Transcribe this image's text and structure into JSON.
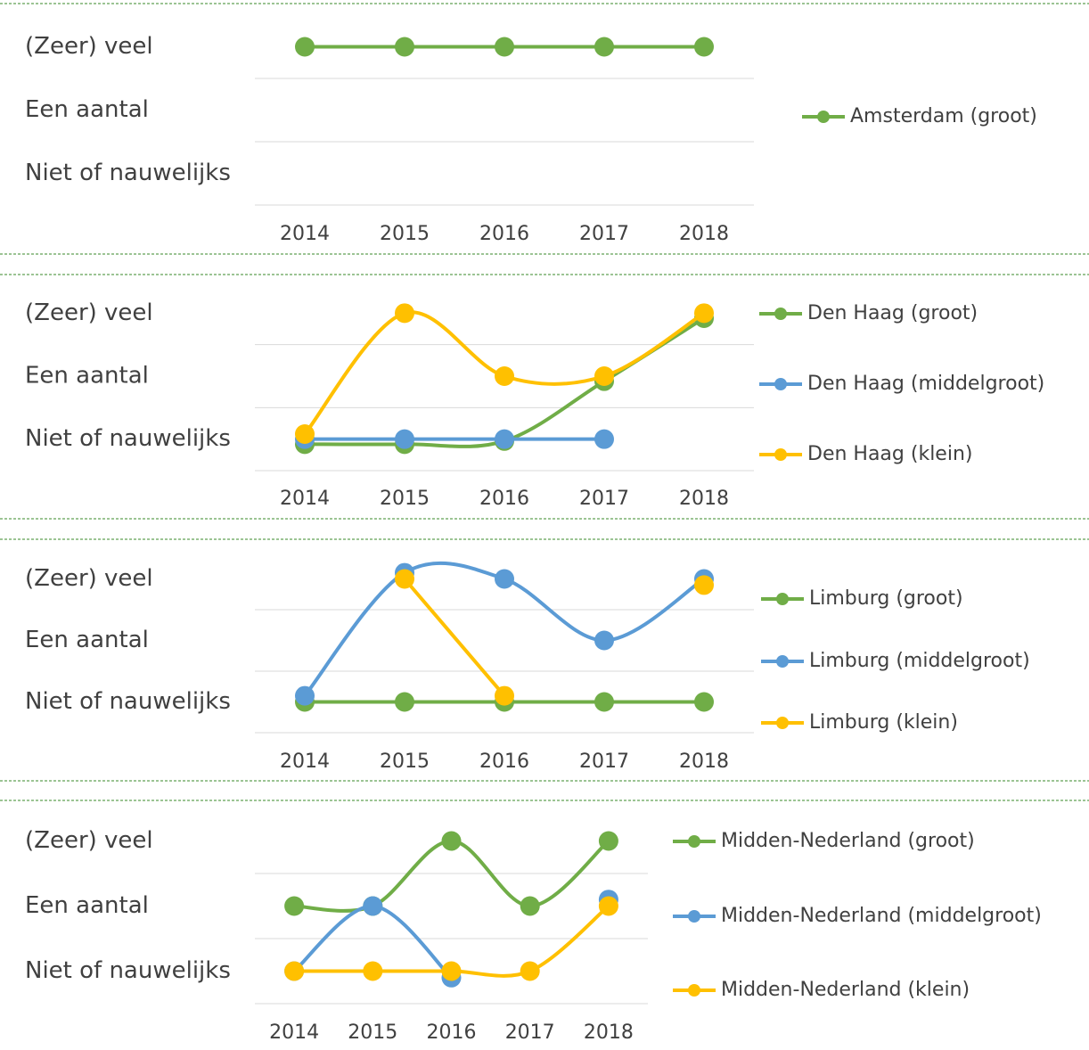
{
  "chart_data": [
    {
      "type": "line",
      "categories": [
        "2014",
        "2015",
        "2016",
        "2017",
        "2018"
      ],
      "series": [
        {
          "name": "Amsterdam (groot)",
          "color": "#70ad47",
          "values": [
            3,
            3,
            3,
            3,
            3
          ]
        }
      ],
      "ylim": [
        0.5,
        3.5
      ],
      "yticks": [
        {
          "value": 1,
          "label": "Niet of nauwelijks"
        },
        {
          "value": 2,
          "label": "Een aantal"
        },
        {
          "value": 3,
          "label": "(Zeer) veel"
        }
      ]
    },
    {
      "type": "line",
      "categories": [
        "2014",
        "2015",
        "2016",
        "2017",
        "2018"
      ],
      "series": [
        {
          "name": "Den Haag (groot)",
          "color": "#70ad47",
          "values": [
            0.92,
            0.92,
            0.97,
            1.92,
            2.92
          ]
        },
        {
          "name": "Den Haag (middelgroot)",
          "color": "#5b9bd5",
          "values": [
            1,
            1,
            1,
            1,
            null
          ]
        },
        {
          "name": "Den Haag (klein)",
          "color": "#ffc000",
          "values": [
            1.08,
            3,
            2,
            2,
            3
          ]
        }
      ],
      "ylim": [
        0.5,
        3.5
      ],
      "yticks": [
        {
          "value": 1,
          "label": "Niet of nauwelijks"
        },
        {
          "value": 2,
          "label": "Een aantal"
        },
        {
          "value": 3,
          "label": "(Zeer) veel"
        }
      ]
    },
    {
      "type": "line",
      "categories": [
        "2014",
        "2015",
        "2016",
        "2017",
        "2018"
      ],
      "series": [
        {
          "name": "Limburg (groot)",
          "color": "#70ad47",
          "values": [
            1,
            1,
            1,
            1,
            1
          ]
        },
        {
          "name": "Limburg (middelgroot)",
          "color": "#5b9bd5",
          "values": [
            1.1,
            3.1,
            3,
            2,
            3
          ]
        },
        {
          "name": "Limburg (klein)",
          "color": "#ffc000",
          "values": [
            null,
            3,
            1.1,
            null,
            2.9
          ]
        }
      ],
      "ylim": [
        0.5,
        3.5
      ],
      "yticks": [
        {
          "value": 1,
          "label": "Niet of nauwelijks"
        },
        {
          "value": 2,
          "label": "Een aantal"
        },
        {
          "value": 3,
          "label": "(Zeer) veel"
        }
      ]
    },
    {
      "type": "line",
      "categories": [
        "2014",
        "2015",
        "2016",
        "2017",
        "2018"
      ],
      "series": [
        {
          "name": "Midden-Nederland (groot)",
          "color": "#70ad47",
          "values": [
            2,
            2,
            3,
            2,
            3
          ]
        },
        {
          "name": "Midden-Nederland (middelgroot)",
          "color": "#5b9bd5",
          "values": [
            1,
            2,
            0.9,
            null,
            2.1
          ]
        },
        {
          "name": "Midden-Nederland (klein)",
          "color": "#ffc000",
          "values": [
            1,
            1,
            1,
            1,
            2
          ]
        }
      ],
      "ylim": [
        0.5,
        3.5
      ],
      "yticks": [
        {
          "value": 1,
          "label": "Niet of nauwelijks"
        },
        {
          "value": 2,
          "label": "Een aantal"
        },
        {
          "value": 3,
          "label": "(Zeer) veel"
        }
      ]
    }
  ]
}
